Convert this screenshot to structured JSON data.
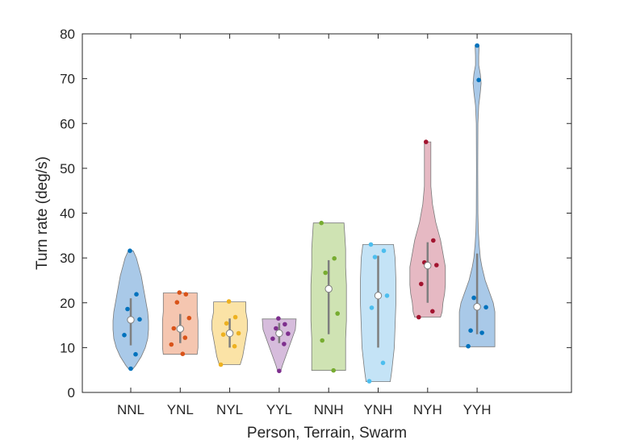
{
  "chart_data": {
    "type": "violin",
    "xlabel": "Person, Terrain, Swarm",
    "ylabel": "Turn rate (deg/s)",
    "ylim": [
      0,
      80
    ],
    "yticks": [
      0,
      10,
      20,
      30,
      40,
      50,
      60,
      70,
      80
    ],
    "grid": false,
    "legend": "none",
    "categories": [
      "NNL",
      "YNL",
      "NYL",
      "YYL",
      "NNH",
      "YNH",
      "NYH",
      "YYH"
    ],
    "groups": [
      {
        "category": "NNL",
        "fill": "#a9c9e8",
        "dot": "#0072bd",
        "median": 16.2,
        "q1": 10.5,
        "q3": 21,
        "points": [
          31.6,
          21.9,
          18.6,
          16.3,
          12.8,
          8.5,
          5.3
        ],
        "profile": [
          [
            5.1,
            2
          ],
          [
            6,
            6
          ],
          [
            8,
            13
          ],
          [
            10,
            18
          ],
          [
            12,
            21
          ],
          [
            14,
            22
          ],
          [
            16,
            22
          ],
          [
            18,
            21
          ],
          [
            20,
            19
          ],
          [
            22,
            17
          ],
          [
            24,
            15
          ],
          [
            26,
            13
          ],
          [
            28,
            10
          ],
          [
            30,
            7
          ],
          [
            31.6,
            3
          ]
        ]
      },
      {
        "category": "YNL",
        "fill": "#f5c6b0",
        "dot": "#d95319",
        "median": 14.2,
        "q1": 11,
        "q3": 17.5,
        "points": [
          22.3,
          21.9,
          20.1,
          16.6,
          14.3,
          12.2,
          10.7,
          8.6
        ],
        "profile": [
          [
            8.5,
            21
          ],
          [
            10,
            22
          ],
          [
            12,
            22
          ],
          [
            14,
            22
          ],
          [
            16,
            22
          ],
          [
            18,
            21
          ],
          [
            20,
            21
          ],
          [
            22.2,
            21
          ]
        ]
      },
      {
        "category": "NYL",
        "fill": "#fbe3a6",
        "dot": "#edb120",
        "median": 13.2,
        "q1": 10,
        "q3": 16.5,
        "points": [
          20.3,
          16.8,
          15.4,
          13.2,
          12.9,
          10.3,
          6.2
        ],
        "profile": [
          [
            6.2,
            13
          ],
          [
            8,
            16
          ],
          [
            10,
            18
          ],
          [
            12,
            20
          ],
          [
            14,
            22
          ],
          [
            16,
            22
          ],
          [
            18,
            20
          ],
          [
            20.2,
            20
          ]
        ]
      },
      {
        "category": "YYL",
        "fill": "#d6bcdc",
        "dot": "#7e2f8e",
        "median": 13.2,
        "q1": 11,
        "q3": 15.5,
        "points": [
          16.5,
          15.2,
          14.3,
          13.1,
          12,
          10.8,
          4.8
        ],
        "profile": [
          [
            4.8,
            2
          ],
          [
            6,
            4
          ],
          [
            8,
            8
          ],
          [
            10,
            12
          ],
          [
            12,
            16
          ],
          [
            14,
            20
          ],
          [
            16.4,
            21
          ]
        ]
      },
      {
        "category": "NNH",
        "fill": "#cfe3b3",
        "dot": "#77ac30",
        "median": 23.1,
        "q1": 13,
        "q3": 29.5,
        "points": [
          37.8,
          29.9,
          26.7,
          17.6,
          11.6,
          4.9
        ],
        "profile": [
          [
            4.9,
            21
          ],
          [
            8,
            21
          ],
          [
            12,
            21
          ],
          [
            16,
            22
          ],
          [
            20,
            22
          ],
          [
            24,
            22
          ],
          [
            28,
            21
          ],
          [
            32,
            21
          ],
          [
            35,
            20
          ],
          [
            37.8,
            19
          ]
        ]
      },
      {
        "category": "YNH",
        "fill": "#c4e3f6",
        "dot": "#4dbeee",
        "median": 21.6,
        "q1": 10,
        "q3": 30.5,
        "points": [
          33,
          31.6,
          30.2,
          21.6,
          18.9,
          6.6,
          2.5
        ],
        "profile": [
          [
            2.4,
            15
          ],
          [
            5,
            17
          ],
          [
            10,
            20
          ],
          [
            15,
            21
          ],
          [
            20,
            22
          ],
          [
            25,
            22
          ],
          [
            30,
            21
          ],
          [
            33,
            19
          ]
        ]
      },
      {
        "category": "NYH",
        "fill": "#e6b9c3",
        "dot": "#a2142f",
        "median": 28.3,
        "q1": 20,
        "q3": 33.5,
        "points": [
          55.9,
          33.9,
          29,
          28.4,
          24.2,
          18.1,
          16.8
        ],
        "profile": [
          [
            16.8,
            16
          ],
          [
            18,
            18
          ],
          [
            20,
            19
          ],
          [
            22,
            21
          ],
          [
            24,
            22
          ],
          [
            26,
            22
          ],
          [
            28,
            22
          ],
          [
            30,
            20
          ],
          [
            32,
            18
          ],
          [
            34,
            16
          ],
          [
            36,
            13
          ],
          [
            38,
            10
          ],
          [
            40,
            8
          ],
          [
            42,
            6
          ],
          [
            44,
            5
          ],
          [
            46,
            4
          ],
          [
            48,
            4
          ],
          [
            50,
            4
          ],
          [
            52,
            4
          ],
          [
            54,
            4
          ],
          [
            55.9,
            4
          ]
        ]
      },
      {
        "category": "YYH",
        "fill": "#a9c9e8",
        "dot": "#0072bd",
        "median": 19.1,
        "q1": 13,
        "q3": 31,
        "points": [
          77.4,
          69.7,
          21.1,
          19,
          13.8,
          13.3,
          10.3
        ],
        "profile": [
          [
            10.2,
            22
          ],
          [
            12,
            22
          ],
          [
            15,
            22
          ],
          [
            18,
            22
          ],
          [
            20,
            20
          ],
          [
            22,
            16
          ],
          [
            25,
            10
          ],
          [
            28,
            6
          ],
          [
            30,
            4
          ],
          [
            33,
            2.5
          ],
          [
            36,
            1.5
          ],
          [
            40,
            1
          ],
          [
            50,
            0.8
          ],
          [
            60,
            1
          ],
          [
            64,
            2
          ],
          [
            67,
            4
          ],
          [
            69,
            5
          ],
          [
            71,
            4
          ],
          [
            73,
            2
          ],
          [
            75,
            2
          ],
          [
            77.4,
            2.5
          ]
        ]
      }
    ]
  }
}
